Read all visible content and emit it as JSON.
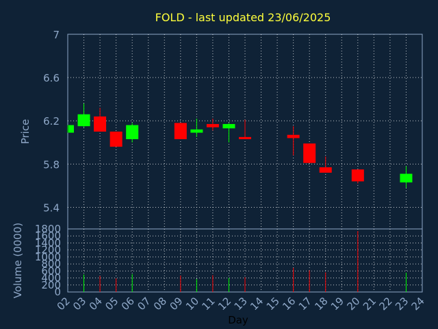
{
  "colors": {
    "background": "#0f2236",
    "up": "#00ff00",
    "down": "#ff0000",
    "title": "#ffff3c",
    "axis_text": "#8fa8c8",
    "grid": "#ffffff"
  },
  "chart_data": [
    {
      "type": "candlestick",
      "title": "FOLD - last updated 23/06/2025",
      "ylabel": "Price",
      "ylim": [
        5.2,
        7.0
      ],
      "yticks": [
        "5.4",
        "5.8",
        "6.2",
        "6.6",
        "7"
      ],
      "grid": true,
      "x": [
        "02",
        "03",
        "04",
        "05",
        "06",
        "07",
        "08",
        "09",
        "10",
        "11",
        "12",
        "13",
        "14",
        "15",
        "16",
        "17",
        "18",
        "19",
        "20",
        "21",
        "22",
        "23",
        "24"
      ],
      "candles": [
        {
          "day": "02",
          "open": 6.09,
          "close": 6.16,
          "high": 6.16,
          "low": 6.09
        },
        {
          "day": "03",
          "open": 6.15,
          "close": 6.26,
          "high": 6.36,
          "low": 6.14
        },
        {
          "day": "04",
          "open": 6.24,
          "close": 6.1,
          "high": 6.32,
          "low": 6.1
        },
        {
          "day": "05",
          "open": 6.1,
          "close": 5.96,
          "high": 6.1,
          "low": 5.96
        },
        {
          "day": "06",
          "open": 6.03,
          "close": 6.16,
          "high": 6.18,
          "low": 6.0
        },
        {
          "day": "09",
          "open": 6.18,
          "close": 6.03,
          "high": 6.18,
          "low": 6.03
        },
        {
          "day": "10",
          "open": 6.09,
          "close": 6.12,
          "high": 6.22,
          "low": 6.05
        },
        {
          "day": "11",
          "open": 6.17,
          "close": 6.14,
          "high": 6.22,
          "low": 6.11
        },
        {
          "day": "12",
          "open": 6.13,
          "close": 6.17,
          "high": 6.18,
          "low": 6.0
        },
        {
          "day": "13",
          "open": 6.05,
          "close": 6.03,
          "high": 6.21,
          "low": 6.03
        },
        {
          "day": "16",
          "open": 6.07,
          "close": 6.04,
          "high": 6.15,
          "low": 5.88
        },
        {
          "day": "17",
          "open": 5.99,
          "close": 5.81,
          "high": 5.99,
          "low": 5.81
        },
        {
          "day": "18",
          "open": 5.77,
          "close": 5.72,
          "high": 5.87,
          "low": 5.72
        },
        {
          "day": "20",
          "open": 5.75,
          "close": 5.64,
          "high": 5.75,
          "low": 5.62
        },
        {
          "day": "23",
          "open": 5.63,
          "close": 5.71,
          "high": 5.78,
          "low": 5.58
        }
      ]
    },
    {
      "type": "bar",
      "ylabel": "Volume (0000)",
      "xlabel": "Day",
      "ylim": [
        0,
        1800
      ],
      "yticks": [
        "0",
        "200",
        "400",
        "600",
        "800",
        "1000",
        "1200",
        "1400",
        "1600",
        "1800"
      ],
      "grid": true,
      "x": [
        "02",
        "03",
        "04",
        "05",
        "06",
        "07",
        "08",
        "09",
        "10",
        "11",
        "12",
        "13",
        "14",
        "15",
        "16",
        "17",
        "18",
        "19",
        "20",
        "21",
        "22",
        "23",
        "24"
      ],
      "bars": [
        {
          "day": "03",
          "value": 500,
          "direction": "up"
        },
        {
          "day": "04",
          "value": 460,
          "direction": "down"
        },
        {
          "day": "05",
          "value": 390,
          "direction": "down"
        },
        {
          "day": "06",
          "value": 510,
          "direction": "up"
        },
        {
          "day": "09",
          "value": 470,
          "direction": "down"
        },
        {
          "day": "10",
          "value": 370,
          "direction": "up"
        },
        {
          "day": "11",
          "value": 480,
          "direction": "down"
        },
        {
          "day": "12",
          "value": 400,
          "direction": "up"
        },
        {
          "day": "13",
          "value": 420,
          "direction": "down"
        },
        {
          "day": "16",
          "value": 690,
          "direction": "down"
        },
        {
          "day": "17",
          "value": 620,
          "direction": "down"
        },
        {
          "day": "18",
          "value": 560,
          "direction": "down"
        },
        {
          "day": "20",
          "value": 1740,
          "direction": "down"
        },
        {
          "day": "23",
          "value": 550,
          "direction": "up"
        }
      ]
    }
  ]
}
